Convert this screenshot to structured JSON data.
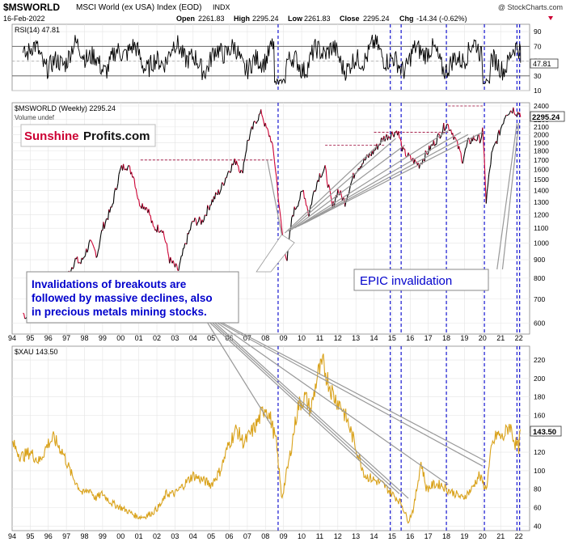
{
  "header": {
    "symbol": "$MSWORLD",
    "name": "MSCI World (ex USA) Index (EOD)",
    "exchange": "INDX",
    "date": "16-Feb-2022",
    "open_label": "Open",
    "open": "2261.83",
    "high_label": "High",
    "high": "2295.24",
    "low_label": "Low",
    "low": "2261.83",
    "close_label": "Close",
    "close": "2295.24",
    "chg_label": "Chg",
    "chg": "-14.34 (-0.62%)",
    "credit": "@ StockCharts.com"
  },
  "panels": {
    "rsi": {
      "label": "RSI(14) 47.81",
      "value_tag": "47.81"
    },
    "price": {
      "label": "$MSWORLD (Weekly) 2295.24",
      "sublabel": "Volume undef",
      "value_tag": "2295.24"
    },
    "xau": {
      "label": "$XAU 143.50",
      "value_tag": "143.50"
    }
  },
  "logo": {
    "part1": "Sunshine",
    "part2": "Profits.com"
  },
  "annotations": {
    "left_box": [
      "Invalidations of breakouts are",
      "followed by massive declines, also",
      "in precious metals mining stocks."
    ],
    "right_box": "EPIC invalidation"
  },
  "colors": {
    "price_line": "#000000",
    "price_down": "#cc0033",
    "xau_line": "#d9a21b",
    "vlines": "#0000cc",
    "hlines": "#990033",
    "annotation_text": "#0000cc",
    "logo_red": "#cc0033"
  },
  "chart_data": [
    {
      "type": "line",
      "title": "RSI(14) 47.81",
      "ylim": [
        10,
        100
      ],
      "y_ticks": [
        10,
        30,
        50,
        70,
        90
      ],
      "reference_lines": [
        30,
        70
      ],
      "last_value": 47.81,
      "grid": true
    },
    {
      "type": "line",
      "title": "$MSWORLD (Weekly) 2295.24",
      "scale": "log",
      "ylim": [
        560,
        2450
      ],
      "y_ticks": [
        600,
        700,
        800,
        900,
        1000,
        1100,
        1200,
        1300,
        1400,
        1500,
        1600,
        1700,
        1800,
        1900,
        2000,
        2100,
        2200,
        2400
      ],
      "x": [
        1994.6,
        1995.0,
        1995.5,
        1996.0,
        1996.5,
        1997.0,
        1997.5,
        1997.8,
        1998.3,
        1998.7,
        1999.0,
        1999.5,
        2000.0,
        2000.3,
        2000.7,
        2001.0,
        2001.5,
        2001.8,
        2002.3,
        2002.7,
        2003.0,
        2003.2,
        2003.6,
        2004.0,
        2004.5,
        2005.0,
        2005.5,
        2006.0,
        2006.4,
        2006.7,
        2007.0,
        2007.5,
        2007.8,
        2008.0,
        2008.3,
        2008.5,
        2008.8,
        2009.0,
        2009.2,
        2009.5,
        2009.8,
        2010.1,
        2010.4,
        2010.7,
        2011.0,
        2011.3,
        2011.7,
        2012.0,
        2012.4,
        2012.7,
        2013.0,
        2013.5,
        2014.0,
        2014.5,
        2014.9,
        2015.3,
        2015.6,
        2016.1,
        2016.5,
        2017.0,
        2017.5,
        2018.0,
        2018.3,
        2018.9,
        2019.2,
        2019.5,
        2019.9,
        2020.0,
        2020.2,
        2020.5,
        2020.9,
        2021.3,
        2021.7,
        2021.9,
        2022.1
      ],
      "values": [
        640,
        610,
        660,
        710,
        760,
        800,
        900,
        880,
        1000,
        930,
        1100,
        1250,
        1600,
        1650,
        1550,
        1300,
        1250,
        1100,
        1100,
        900,
        860,
        840,
        1000,
        1150,
        1150,
        1300,
        1400,
        1600,
        1700,
        1550,
        1900,
        2200,
        2300,
        2100,
        1950,
        1700,
        1200,
        1000,
        900,
        1200,
        1300,
        1400,
        1200,
        1400,
        1550,
        1600,
        1250,
        1400,
        1300,
        1450,
        1600,
        1700,
        1800,
        1950,
        2000,
        2050,
        1800,
        1700,
        1650,
        1800,
        1950,
        2150,
        2050,
        1700,
        1900,
        1950,
        1950,
        2050,
        1300,
        1750,
        2000,
        2300,
        2350,
        2300,
        2295
      ],
      "reference_levels": [
        1700,
        1870,
        2030,
        2400
      ],
      "last_value": 2295.24,
      "grid": true
    },
    {
      "type": "line",
      "title": "$XAU 143.50",
      "ylim": [
        35,
        235
      ],
      "y_ticks": [
        40,
        60,
        80,
        100,
        120,
        140,
        160,
        180,
        200,
        220
      ],
      "x": [
        1994.0,
        1994.5,
        1995.0,
        1995.5,
        1996.0,
        1996.3,
        1996.8,
        1997.3,
        1997.9,
        1998.3,
        1998.6,
        1999.0,
        1999.5,
        2000.0,
        2000.5,
        2000.9,
        2001.3,
        2001.8,
        2002.3,
        2002.5,
        2003.0,
        2003.5,
        2004.0,
        2004.5,
        2005.0,
        2005.5,
        2006.0,
        2006.4,
        2006.8,
        2007.0,
        2007.5,
        2008.0,
        2008.3,
        2008.6,
        2008.9,
        2009.3,
        2009.8,
        2010.2,
        2010.5,
        2010.9,
        2011.2,
        2011.5,
        2011.8,
        2012.2,
        2012.6,
        2013.0,
        2013.5,
        2014.0,
        2014.5,
        2015.0,
        2015.5,
        2015.9,
        2016.2,
        2016.6,
        2016.9,
        2017.3,
        2017.7,
        2018.0,
        2018.5,
        2018.9,
        2019.4,
        2019.8,
        2020.2,
        2020.5,
        2020.8,
        2021.1,
        2021.5,
        2021.8,
        2022.0,
        2022.1
      ],
      "values": [
        130,
        115,
        120,
        110,
        130,
        135,
        120,
        95,
        75,
        80,
        70,
        75,
        65,
        60,
        55,
        50,
        50,
        55,
        65,
        75,
        75,
        85,
        95,
        90,
        85,
        100,
        130,
        145,
        130,
        135,
        150,
        170,
        155,
        130,
        70,
        110,
        170,
        180,
        165,
        205,
        215,
        195,
        180,
        170,
        150,
        125,
        95,
        90,
        85,
        75,
        65,
        45,
        60,
        110,
        80,
        85,
        85,
        80,
        75,
        70,
        80,
        95,
        80,
        125,
        140,
        135,
        150,
        130,
        125,
        143.5
      ],
      "last_value": 143.5,
      "grid": true
    }
  ],
  "x_axis": {
    "tick_labels": [
      "94",
      "95",
      "96",
      "97",
      "98",
      "99",
      "00",
      "01",
      "02",
      "03",
      "04",
      "05",
      "06",
      "07",
      "08",
      "09",
      "10",
      "11",
      "12",
      "13",
      "14",
      "15",
      "16",
      "17",
      "18",
      "19",
      "20",
      "21",
      "22"
    ],
    "event_lines_x": [
      2008.7,
      2014.9,
      2015.5,
      2018.0,
      2020.1,
      2021.9,
      2022.05
    ]
  }
}
